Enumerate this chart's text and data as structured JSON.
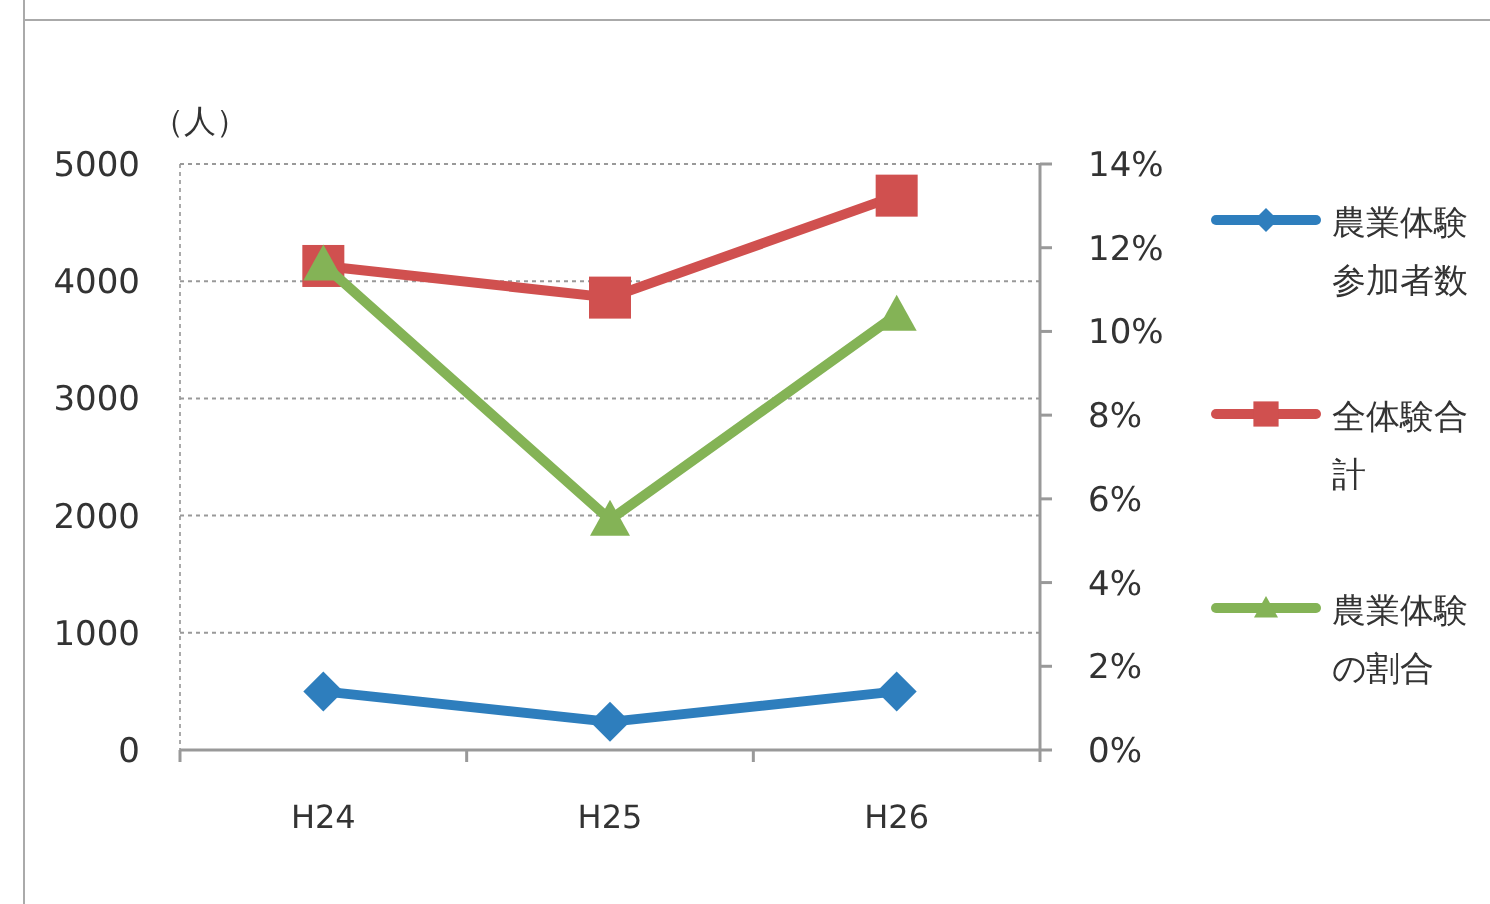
{
  "chart_data": {
    "type": "line",
    "ylabel": "（人）",
    "categories": [
      "H24",
      "H25",
      "H26"
    ],
    "series": [
      {
        "name": "農業体験参加者数",
        "color": "#2e7ebd",
        "values": [
          500,
          240,
          500
        ],
        "marker": "diamond"
      },
      {
        "name": "全体験合計",
        "color": "#d0504f",
        "values": [
          4130,
          3860,
          4730
        ],
        "marker": "square"
      },
      {
        "name": "農業体験の割合",
        "color": "#84b356",
        "values": [
          11.6,
          5.5,
          10.4
        ],
        "marker": "triangle",
        "axis": "y2"
      }
    ],
    "ylim": [
      0,
      5000
    ],
    "yticks": [
      0,
      1000,
      2000,
      3000,
      4000,
      5000
    ],
    "y2lim": [
      0,
      14
    ],
    "y2ticks": [
      {
        "value": 0,
        "label": "0%"
      },
      {
        "value": 2,
        "label": "2%"
      },
      {
        "value": 4,
        "label": "4%"
      },
      {
        "value": 6,
        "label": "6%"
      },
      {
        "value": 8,
        "label": "8%"
      },
      {
        "value": 10,
        "label": "10%"
      },
      {
        "value": 12,
        "label": "12%"
      },
      {
        "value": 14,
        "label": "14%"
      }
    ],
    "grid": "y",
    "legend": "right"
  }
}
